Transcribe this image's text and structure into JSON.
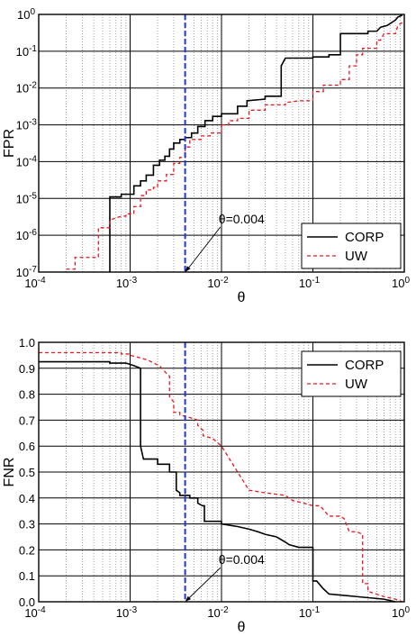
{
  "chart_data": [
    {
      "type": "line",
      "xlabel": "θ",
      "ylabel": "FPR",
      "xscale": "log",
      "yscale": "log",
      "xlim": [
        0.0001,
        1
      ],
      "ylim": [
        1e-07,
        1
      ],
      "x_ticks": [
        {
          "value": 0.0001,
          "base": "10",
          "exp": "-4"
        },
        {
          "value": 0.001,
          "base": "10",
          "exp": "-3"
        },
        {
          "value": 0.01,
          "base": "10",
          "exp": "-2"
        },
        {
          "value": 0.1,
          "base": "10",
          "exp": "-1"
        },
        {
          "value": 1,
          "base": "10",
          "exp": "0"
        }
      ],
      "y_ticks": [
        {
          "value": 1e-07,
          "base": "10",
          "exp": "-7"
        },
        {
          "value": 1e-06,
          "base": "10",
          "exp": "-6"
        },
        {
          "value": 1e-05,
          "base": "10",
          "exp": "-5"
        },
        {
          "value": 0.0001,
          "base": "10",
          "exp": "-4"
        },
        {
          "value": 0.001,
          "base": "10",
          "exp": "-3"
        },
        {
          "value": 0.01,
          "base": "10",
          "exp": "-2"
        },
        {
          "value": 0.1,
          "base": "10",
          "exp": "-1"
        },
        {
          "value": 1,
          "base": "10",
          "exp": "0"
        }
      ],
      "grid": true,
      "legend_position": "bottom-right",
      "series": [
        {
          "name": "CORP",
          "color": "#000000",
          "dash": "solid",
          "points": [
            [
              0.0006,
              1e-07
            ],
            [
              0.0006,
              1.1e-05
            ],
            [
              0.0008,
              1.1e-05
            ],
            [
              0.0008,
              1.3e-05
            ],
            [
              0.0011,
              1.3e-05
            ],
            [
              0.0011,
              2.2e-05
            ],
            [
              0.0013,
              2.2e-05
            ],
            [
              0.0013,
              3e-05
            ],
            [
              0.0015,
              3e-05
            ],
            [
              0.0015,
              4.3e-05
            ],
            [
              0.0018,
              4.3e-05
            ],
            [
              0.0018,
              8e-05
            ],
            [
              0.0021,
              8e-05
            ],
            [
              0.0021,
              0.00011
            ],
            [
              0.0024,
              0.00011
            ],
            [
              0.0024,
              0.00014
            ],
            [
              0.0027,
              0.00014
            ],
            [
              0.0027,
              0.00022
            ],
            [
              0.003,
              0.00022
            ],
            [
              0.003,
              0.00032
            ],
            [
              0.0035,
              0.00032
            ],
            [
              0.0035,
              0.0004
            ],
            [
              0.004,
              0.0004
            ],
            [
              0.004,
              0.00045
            ],
            [
              0.0047,
              0.00045
            ],
            [
              0.0047,
              0.0006
            ],
            [
              0.0055,
              0.0006
            ],
            [
              0.0055,
              0.0009
            ],
            [
              0.0066,
              0.0009
            ],
            [
              0.0066,
              0.0013
            ],
            [
              0.008,
              0.0013
            ],
            [
              0.008,
              0.0017
            ],
            [
              0.01,
              0.0017
            ],
            [
              0.01,
              0.002
            ],
            [
              0.015,
              0.002
            ],
            [
              0.015,
              0.0032
            ],
            [
              0.019,
              0.0032
            ],
            [
              0.019,
              0.0045
            ],
            [
              0.03,
              0.005
            ],
            [
              0.03,
              0.006
            ],
            [
              0.045,
              0.006
            ],
            [
              0.045,
              0.04
            ],
            [
              0.05,
              0.065
            ],
            [
              0.1,
              0.065
            ],
            [
              0.1,
              0.07
            ],
            [
              0.15,
              0.07
            ],
            [
              0.15,
              0.08
            ],
            [
              0.2,
              0.08
            ],
            [
              0.2,
              0.3
            ],
            [
              0.4,
              0.3
            ],
            [
              0.4,
              0.35
            ],
            [
              0.5,
              0.35
            ],
            [
              0.55,
              0.45
            ],
            [
              0.65,
              0.5
            ],
            [
              0.8,
              0.7
            ],
            [
              0.85,
              0.85
            ],
            [
              0.95,
              0.95
            ]
          ]
        },
        {
          "name": "UW",
          "color": "#e8181e",
          "dash": "dashed",
          "points": [
            [
              0.0002,
              1.2e-07
            ],
            [
              0.00025,
              1.2e-07
            ],
            [
              0.00025,
              2.5e-07
            ],
            [
              0.00045,
              2.5e-07
            ],
            [
              0.00045,
              1.6e-06
            ],
            [
              0.0006,
              1.6e-06
            ],
            [
              0.0006,
              2.6e-06
            ],
            [
              0.0008,
              3.3e-06
            ],
            [
              0.0009,
              3.3e-06
            ],
            [
              0.0009,
              3.8e-06
            ],
            [
              0.0011,
              3.8e-06
            ],
            [
              0.0011,
              6e-06
            ],
            [
              0.0013,
              6e-06
            ],
            [
              0.0013,
              1.2e-05
            ],
            [
              0.0015,
              1.2e-05
            ],
            [
              0.0015,
              1.7e-05
            ],
            [
              0.0018,
              1.7e-05
            ],
            [
              0.0018,
              2e-05
            ],
            [
              0.002,
              2e-05
            ],
            [
              0.002,
              3e-05
            ],
            [
              0.0025,
              3e-05
            ],
            [
              0.0025,
              4.5e-05
            ],
            [
              0.003,
              4.5e-05
            ],
            [
              0.003,
              9e-05
            ],
            [
              0.0035,
              9e-05
            ],
            [
              0.0035,
              0.00013
            ],
            [
              0.004,
              0.00013
            ],
            [
              0.004,
              0.00025
            ],
            [
              0.0045,
              0.00025
            ],
            [
              0.0045,
              0.0004
            ],
            [
              0.006,
              0.0004
            ],
            [
              0.006,
              0.0005
            ],
            [
              0.0075,
              0.0005
            ],
            [
              0.0075,
              0.0006
            ],
            [
              0.01,
              0.0006
            ],
            [
              0.01,
              0.001
            ],
            [
              0.012,
              0.001
            ],
            [
              0.012,
              0.0013
            ],
            [
              0.015,
              0.0013
            ],
            [
              0.015,
              0.0015
            ],
            [
              0.02,
              0.0015
            ],
            [
              0.02,
              0.0025
            ],
            [
              0.03,
              0.0025
            ],
            [
              0.03,
              0.0035
            ],
            [
              0.05,
              0.0035
            ],
            [
              0.05,
              0.004
            ],
            [
              0.07,
              0.0045
            ],
            [
              0.1,
              0.0045
            ],
            [
              0.1,
              0.008
            ],
            [
              0.13,
              0.008
            ],
            [
              0.13,
              0.012
            ],
            [
              0.2,
              0.012
            ],
            [
              0.2,
              0.017
            ],
            [
              0.25,
              0.017
            ],
            [
              0.25,
              0.04
            ],
            [
              0.3,
              0.04
            ],
            [
              0.3,
              0.08
            ],
            [
              0.35,
              0.08
            ],
            [
              0.35,
              0.12
            ],
            [
              0.5,
              0.12
            ],
            [
              0.5,
              0.2
            ],
            [
              0.55,
              0.2
            ],
            [
              0.6,
              0.3
            ],
            [
              0.8,
              0.3
            ],
            [
              0.85,
              0.5
            ],
            [
              0.95,
              0.6
            ]
          ]
        }
      ],
      "vline": {
        "x": 0.004,
        "color": "#1f34e0",
        "dash": "dashed"
      },
      "annotation": {
        "text": "θ=0.004",
        "arrow_to_x": 0.004,
        "arrow_to_y": 1e-07,
        "text_x": 0.0093,
        "text_y": 2.1e-06
      }
    },
    {
      "type": "line",
      "xlabel": "θ",
      "ylabel": "FNR",
      "xscale": "log",
      "yscale": "linear",
      "xlim": [
        0.0001,
        1
      ],
      "ylim": [
        0,
        1
      ],
      "x_ticks": [
        {
          "value": 0.0001,
          "base": "10",
          "exp": "-4"
        },
        {
          "value": 0.001,
          "base": "10",
          "exp": "-3"
        },
        {
          "value": 0.01,
          "base": "10",
          "exp": "-2"
        },
        {
          "value": 0.1,
          "base": "10",
          "exp": "-1"
        },
        {
          "value": 1,
          "base": "10",
          "exp": "0"
        }
      ],
      "y_ticks": [
        {
          "value": 0,
          "label": "0.0"
        },
        {
          "value": 0.1,
          "label": "0.1"
        },
        {
          "value": 0.2,
          "label": "0.2"
        },
        {
          "value": 0.3,
          "label": "0.3"
        },
        {
          "value": 0.4,
          "label": "0.4"
        },
        {
          "value": 0.5,
          "label": "0.5"
        },
        {
          "value": 0.6,
          "label": "0.6"
        },
        {
          "value": 0.7,
          "label": "0.7"
        },
        {
          "value": 0.8,
          "label": "0.8"
        },
        {
          "value": 0.9,
          "label": "0.9"
        },
        {
          "value": 1,
          "label": "1.0"
        }
      ],
      "grid": true,
      "legend_position": "top-right",
      "series": [
        {
          "name": "CORP",
          "color": "#000000",
          "dash": "solid",
          "points": [
            [
              0.0001,
              0.925
            ],
            [
              0.0006,
              0.925
            ],
            [
              0.0006,
              0.92
            ],
            [
              0.0009,
              0.92
            ],
            [
              0.0011,
              0.91
            ],
            [
              0.0013,
              0.9
            ],
            [
              0.0013,
              0.6
            ],
            [
              0.0014,
              0.55
            ],
            [
              0.002,
              0.55
            ],
            [
              0.002,
              0.53
            ],
            [
              0.0027,
              0.53
            ],
            [
              0.0027,
              0.5
            ],
            [
              0.0032,
              0.5
            ],
            [
              0.0032,
              0.43
            ],
            [
              0.0035,
              0.42
            ],
            [
              0.0035,
              0.41
            ],
            [
              0.0045,
              0.41
            ],
            [
              0.0045,
              0.4
            ],
            [
              0.0055,
              0.4
            ],
            [
              0.0055,
              0.38
            ],
            [
              0.0062,
              0.37
            ],
            [
              0.0065,
              0.37
            ],
            [
              0.0065,
              0.31
            ],
            [
              0.01,
              0.31
            ],
            [
              0.01,
              0.3
            ],
            [
              0.015,
              0.29
            ],
            [
              0.02,
              0.28
            ],
            [
              0.025,
              0.27
            ],
            [
              0.03,
              0.26
            ],
            [
              0.04,
              0.25
            ],
            [
              0.05,
              0.23
            ],
            [
              0.055,
              0.22
            ],
            [
              0.07,
              0.21
            ],
            [
              0.1,
              0.21
            ],
            [
              0.1,
              0.08
            ],
            [
              0.11,
              0.08
            ],
            [
              0.13,
              0.05
            ],
            [
              0.15,
              0.03
            ],
            [
              0.3,
              0.02
            ],
            [
              0.6,
              0.01
            ],
            [
              0.8,
              0.0
            ]
          ]
        },
        {
          "name": "UW",
          "color": "#e8181e",
          "dash": "dashed",
          "points": [
            [
              0.0001,
              0.96
            ],
            [
              0.0008,
              0.96
            ],
            [
              0.0008,
              0.955
            ],
            [
              0.001,
              0.955
            ],
            [
              0.001,
              0.95
            ],
            [
              0.0013,
              0.94
            ],
            [
              0.0016,
              0.93
            ],
            [
              0.0018,
              0.92
            ],
            [
              0.0021,
              0.91
            ],
            [
              0.0025,
              0.88
            ],
            [
              0.0027,
              0.87
            ],
            [
              0.0027,
              0.79
            ],
            [
              0.003,
              0.77
            ],
            [
              0.003,
              0.73
            ],
            [
              0.0035,
              0.73
            ],
            [
              0.0035,
              0.72
            ],
            [
              0.0045,
              0.71
            ],
            [
              0.0055,
              0.7
            ],
            [
              0.0055,
              0.68
            ],
            [
              0.0063,
              0.66
            ],
            [
              0.0063,
              0.64
            ],
            [
              0.008,
              0.63
            ],
            [
              0.01,
              0.6
            ],
            [
              0.015,
              0.5
            ],
            [
              0.02,
              0.43
            ],
            [
              0.03,
              0.42
            ],
            [
              0.05,
              0.41
            ],
            [
              0.06,
              0.39
            ],
            [
              0.08,
              0.38
            ],
            [
              0.1,
              0.37
            ],
            [
              0.12,
              0.37
            ],
            [
              0.15,
              0.33
            ],
            [
              0.2,
              0.33
            ],
            [
              0.22,
              0.32
            ],
            [
              0.25,
              0.27
            ],
            [
              0.3,
              0.27
            ],
            [
              0.35,
              0.26
            ],
            [
              0.35,
              0.07
            ],
            [
              0.4,
              0.07
            ],
            [
              0.4,
              0.04
            ],
            [
              0.6,
              0.02
            ],
            [
              0.8,
              0.01
            ],
            [
              0.95,
              0.0
            ]
          ]
        }
      ],
      "vline": {
        "x": 0.004,
        "color": "#1f34e0",
        "dash": "dashed"
      },
      "annotation": {
        "text": "θ=0.004",
        "arrow_to_x": 0.004,
        "arrow_to_y": 0,
        "text_x": 0.0093,
        "text_y": 0.145
      }
    }
  ]
}
